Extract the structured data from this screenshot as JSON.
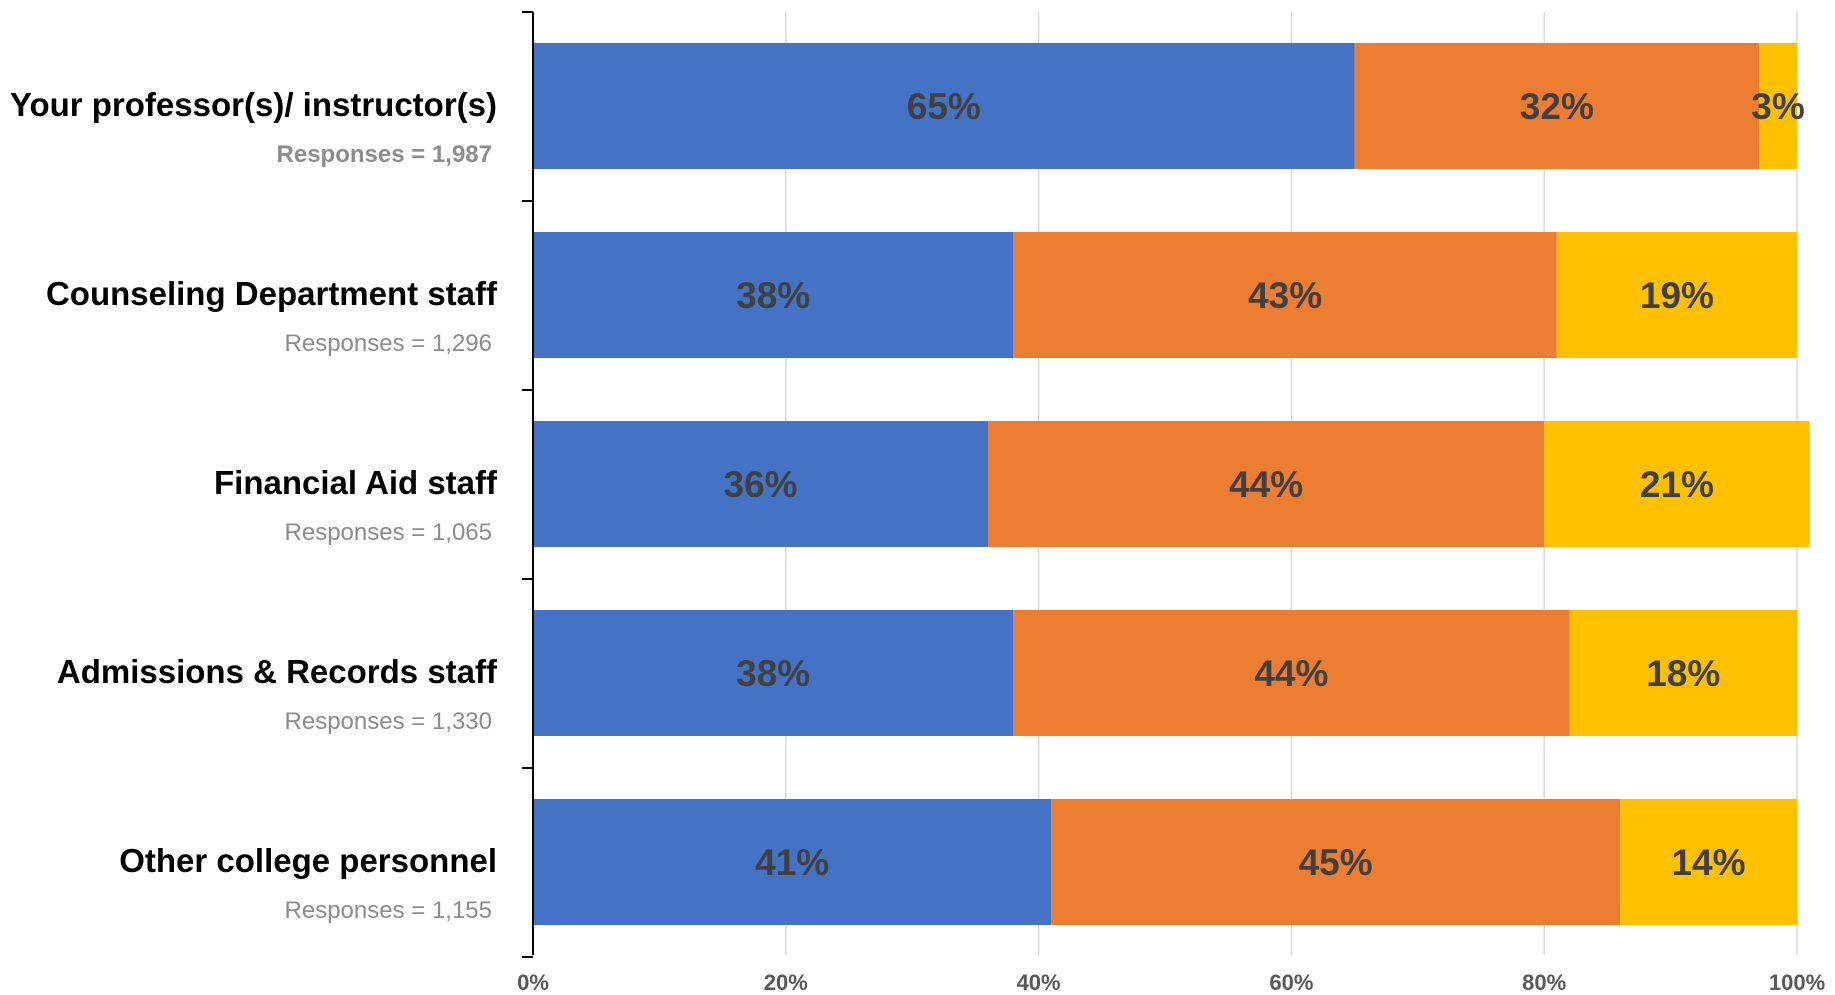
{
  "chart_data": {
    "type": "bar",
    "orientation": "horizontal",
    "stacked": true,
    "categories": [
      "Your professor(s)/ instructor(s)",
      "Counseling Department staff",
      "Financial Aid staff",
      "Admissions & Records staff",
      "Other college personnel"
    ],
    "responses": [
      "Responses = 1,987",
      "Responses = 1,296",
      "Responses = 1,065",
      "Responses = 1,330",
      "Responses = 1,155"
    ],
    "series": [
      {
        "values": [
          65,
          38,
          36,
          38,
          41
        ],
        "labels": [
          "65%",
          "38%",
          "36%",
          "38%",
          "41%"
        ],
        "color": "#4472C4"
      },
      {
        "values": [
          32,
          43,
          44,
          44,
          45
        ],
        "labels": [
          "32%",
          "43%",
          "44%",
          "44%",
          "45%"
        ],
        "color": "#ED7D31"
      },
      {
        "values": [
          3,
          19,
          21,
          18,
          14
        ],
        "labels": [
          "3%",
          "19%",
          "21%",
          "18%",
          "14%"
        ],
        "color": "#FFC000"
      }
    ],
    "x_ticks": [
      {
        "value": 0,
        "label": "0%"
      },
      {
        "value": 20,
        "label": "20%"
      },
      {
        "value": 40,
        "label": "40%"
      },
      {
        "value": 60,
        "label": "60%"
      },
      {
        "value": 80,
        "label": "80%"
      },
      {
        "value": 100,
        "label": "100%"
      }
    ],
    "xlim": [
      0,
      100
    ],
    "grid": true,
    "title": "",
    "xlabel": "",
    "ylabel": "",
    "legend": "none"
  }
}
